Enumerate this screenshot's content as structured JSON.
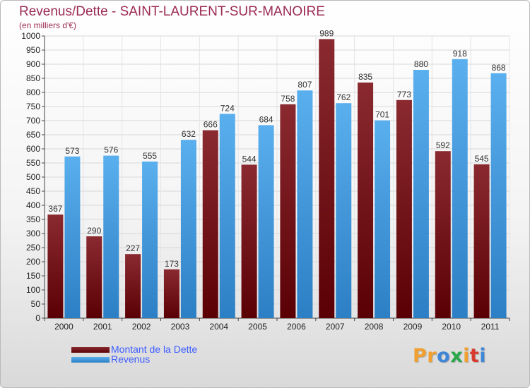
{
  "chart_data": {
    "type": "bar",
    "title": "Revenus/Dette - SAINT-LAURENT-SUR-MANOIRE",
    "subtitle": "(en milliers d'€)",
    "categories": [
      "2000",
      "2001",
      "2002",
      "2003",
      "2004",
      "2005",
      "2006",
      "2007",
      "2008",
      "2009",
      "2010",
      "2011"
    ],
    "series": [
      {
        "name": "Montant de la Dette",
        "color": "#6e1014",
        "values": [
          367,
          290,
          227,
          173,
          666,
          544,
          758,
          989,
          835,
          773,
          592,
          545
        ]
      },
      {
        "name": "Revenus",
        "color": "#4aa3e6",
        "values": [
          573,
          576,
          555,
          632,
          724,
          684,
          807,
          762,
          701,
          880,
          918,
          868
        ]
      }
    ],
    "ylim": [
      0,
      1000
    ],
    "ytick_step": 50,
    "grid": true,
    "legend_position": "bottom-left"
  },
  "logo": {
    "text": "Proxiti",
    "letters": [
      {
        "char": "P",
        "color": "#f0a030"
      },
      {
        "char": "r",
        "color": "#f0a030"
      },
      {
        "char": "o",
        "color": "#3e86d8"
      },
      {
        "char": "x",
        "color": "#2aa84a"
      },
      {
        "char": "i",
        "color": "#f0a030"
      },
      {
        "char": "t",
        "color": "#d83a2e"
      },
      {
        "char": "i",
        "color": "#3e86d8"
      }
    ]
  }
}
